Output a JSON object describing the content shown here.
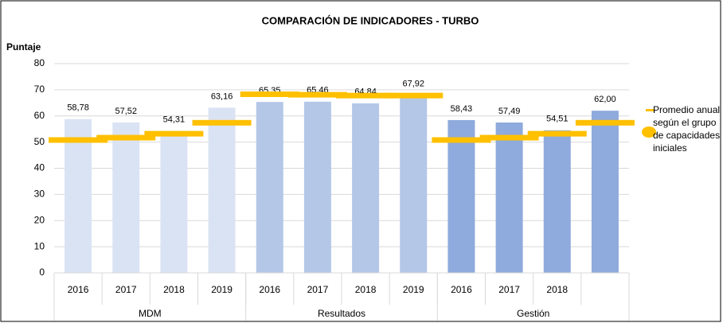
{
  "chart_data": {
    "type": "bar",
    "title": "COMPARACIÓN DE INDICADORES - TURBO",
    "y_label": "Puntaje",
    "categories": [
      "2016",
      "2017",
      "2018",
      "2019",
      "2016",
      "2017",
      "2018",
      "2019",
      "2016",
      "2017",
      "2018",
      null
    ],
    "groups": [
      {
        "name": "MDM",
        "size": 4,
        "color": "#dae3f3"
      },
      {
        "name": "Resultados",
        "size": 4,
        "color": "#b4c7e7"
      },
      {
        "name": "Gestión",
        "size": 4,
        "color": "#8faadc"
      }
    ],
    "values": [
      58.78,
      57.52,
      54.31,
      63.16,
      65.35,
      65.46,
      64.84,
      67.92,
      58.43,
      57.49,
      54.51,
      62.0
    ],
    "value_labels": [
      "58,78",
      "57,52",
      "54,31",
      "63,16",
      "65,35",
      "65,46",
      "64,84",
      "67,92",
      "58,43",
      "57,49",
      "54,51",
      "62,00"
    ],
    "series": [
      {
        "name": "Promedio anual según el grupo de capacidades iniciales",
        "color": "#ffc000",
        "values": [
          50.8,
          51.7,
          53.2,
          57.4,
          68.3,
          68.1,
          67.8,
          67.8,
          50.8,
          51.7,
          53.2,
          57.4
        ]
      }
    ],
    "ylim": [
      0,
      80
    ],
    "yticks": [
      0,
      10,
      20,
      30,
      40,
      50,
      60,
      70,
      80
    ],
    "grid": true,
    "legend": "right"
  }
}
